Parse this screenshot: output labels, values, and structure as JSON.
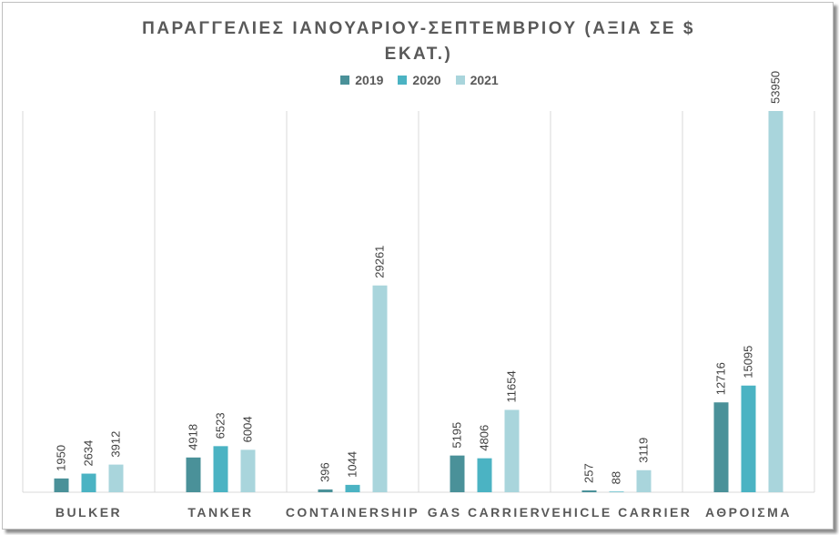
{
  "chart_data": {
    "type": "bar",
    "title": "ΠΑΡΑΓΓΕΛΙΕΣ ΙΑΝΟΥΑΡΙΟΥ-ΣΕΠΤΕΜΒΡΙΟΥ (ΑΞΙΑ ΣΕ $ ΕΚΑΤ.)",
    "title_line1": "ΠΑΡΑΓΓΕΛΙΕΣ ΙΑΝΟΥΑΡΙΟΥ-ΣΕΠΤΕΜΒΡΙΟΥ (ΑΞΙΑ ΣΕ $",
    "title_line2": "ΕΚΑΤ.)",
    "categories": [
      "BULKER",
      "TANKER",
      "CONTAINERSHIP",
      "GAS CARRIER",
      "VEHICLE CARRIER",
      "ΑΘΡΟΙΣΜΑ"
    ],
    "series": [
      {
        "name": "2019",
        "color": "#4a9199",
        "values": [
          1950,
          4918,
          396,
          5195,
          257,
          12716
        ]
      },
      {
        "name": "2020",
        "color": "#4bb3c3",
        "values": [
          2634,
          6523,
          1044,
          4806,
          88,
          15095
        ]
      },
      {
        "name": "2021",
        "color": "#a9d5dc",
        "values": [
          3912,
          6004,
          29261,
          11654,
          3119,
          53950
        ]
      }
    ],
    "ylim": [
      0,
      56000
    ],
    "legend_position": "top",
    "grid": "vertical category separators"
  }
}
